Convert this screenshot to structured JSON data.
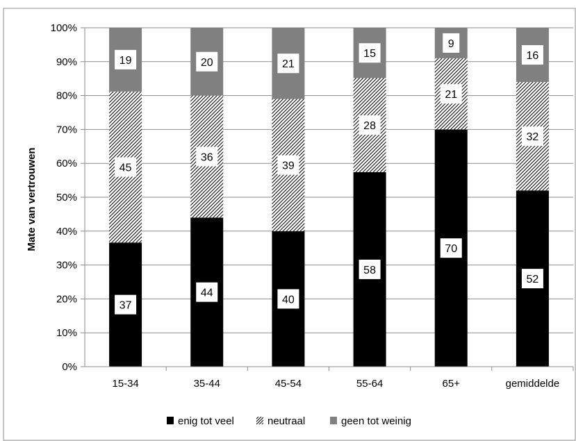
{
  "chart_data": {
    "type": "bar",
    "stacked": true,
    "percent_stacked": true,
    "title": "",
    "xlabel": "",
    "ylabel": "Mate van  vertrouwen",
    "ylim": [
      0,
      100
    ],
    "y_ticks": [
      "0%",
      "10%",
      "20%",
      "30%",
      "40%",
      "50%",
      "60%",
      "70%",
      "80%",
      "90%",
      "100%"
    ],
    "categories": [
      "15-34",
      "35-44",
      "45-54",
      "55-64",
      "65+",
      "gemiddelde"
    ],
    "series": [
      {
        "name": "enig tot veel",
        "values": [
          37,
          44,
          40,
          58,
          70,
          52
        ],
        "fill": "#000000",
        "pattern": "solid"
      },
      {
        "name": "neutraal",
        "values": [
          45,
          36,
          39,
          28,
          21,
          32
        ],
        "fill": "#000000",
        "pattern": "diagonal-hatch"
      },
      {
        "name": "geen tot weinig",
        "values": [
          19,
          20,
          21,
          15,
          9,
          16
        ],
        "fill": "#808080",
        "pattern": "solid"
      }
    ],
    "grid": true,
    "legend_position": "bottom",
    "data_labels": true
  }
}
